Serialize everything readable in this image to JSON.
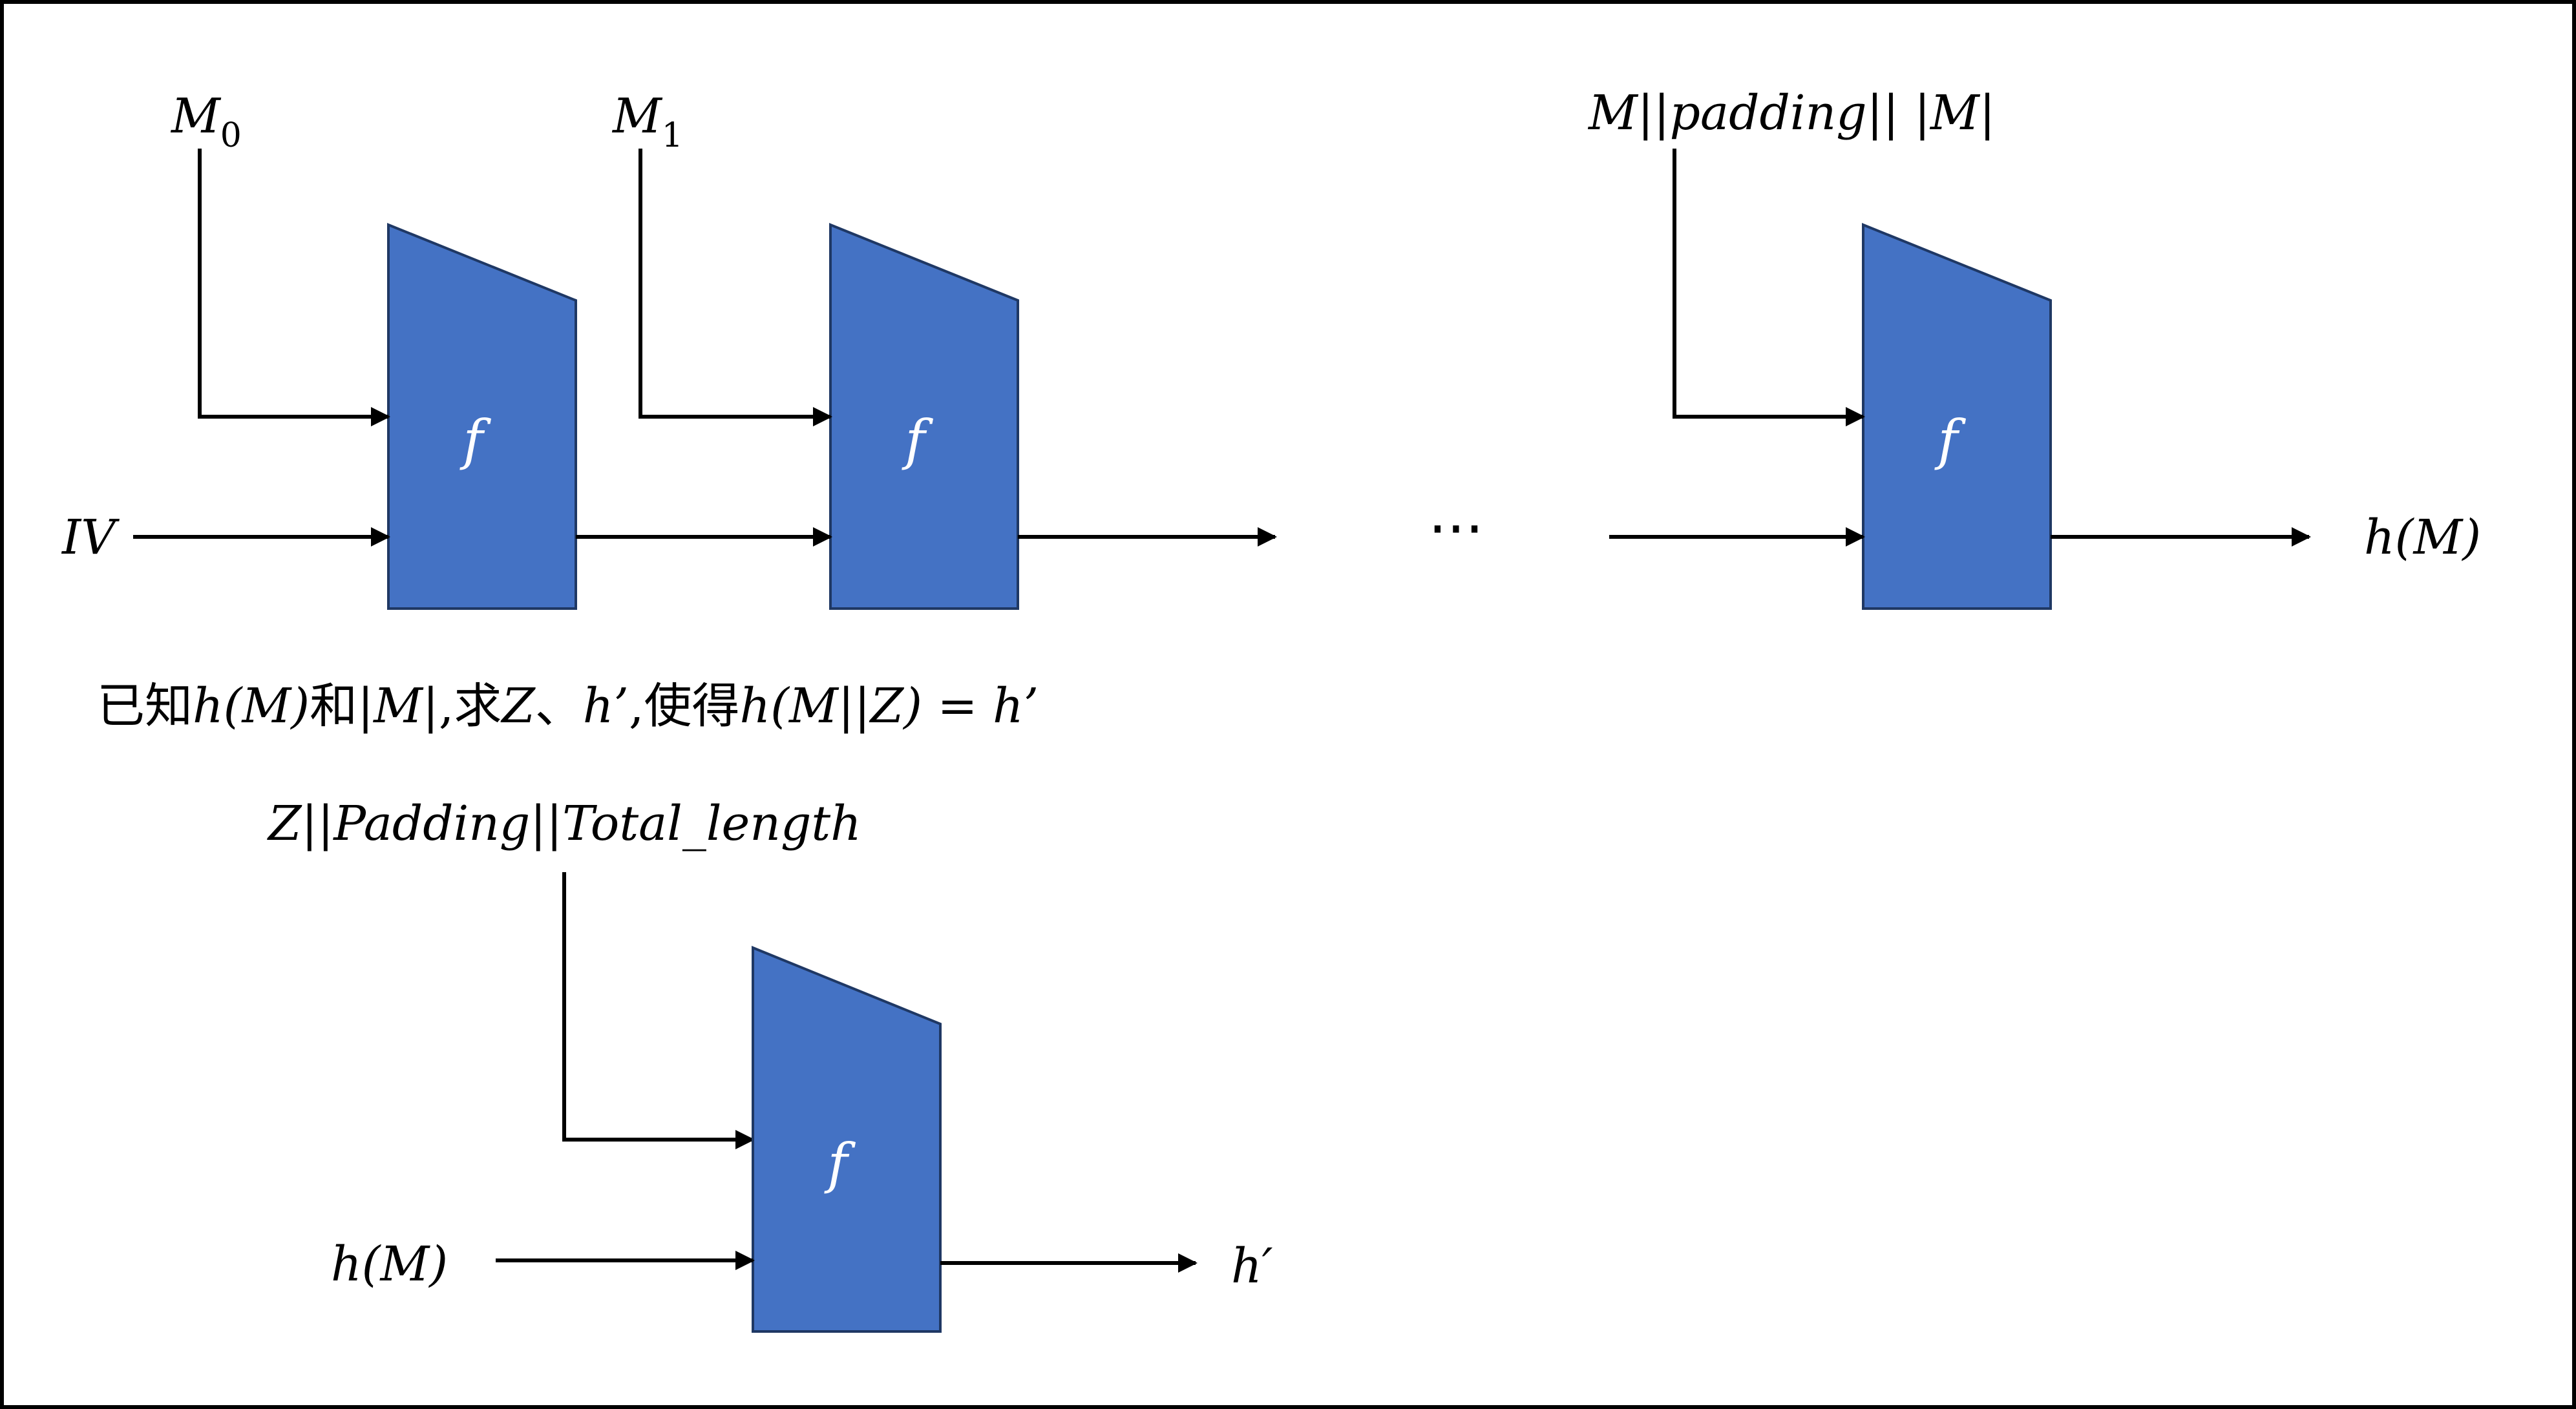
{
  "labels": {
    "m0_base": "M",
    "m0_sub": "0",
    "m1_base": "M",
    "m1_sub": "1",
    "last_block": "M||padding|| |M|",
    "iv": "IV",
    "ellipsis": "···",
    "output_top": "h(M)",
    "function": "f",
    "ext_block": "Z||Padding||Total_length",
    "ext_input": "h(M)",
    "ext_output": "h′"
  },
  "question": {
    "t1": "已知",
    "t2": "h(M)",
    "t3": "和",
    "t4": "|M|",
    "t5": ",",
    "t6": "求",
    "t7": "Z",
    "t8": "、",
    "t9": "h’",
    "t10": ",",
    "t11": "使得",
    "t12": "h(M||Z) = h’"
  },
  "colors": {
    "box_fill": "#4472c4",
    "box_stroke": "#1f3864",
    "border": "#000000"
  }
}
